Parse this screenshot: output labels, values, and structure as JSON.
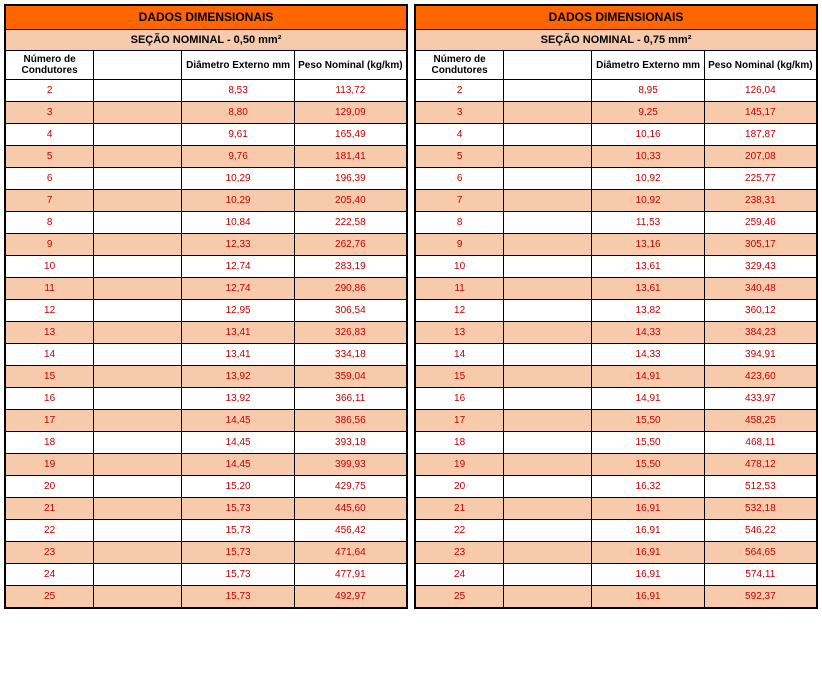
{
  "left": {
    "title": "DADOS DIMENSIONAIS",
    "subtitle": "SEÇÃO NOMINAL - 0,50 mm²",
    "columns": [
      "Número de Condutores",
      "",
      "Diâmetro Externo mm",
      "Peso Nominal (kg/km)"
    ],
    "rows": [
      [
        "2",
        "",
        "8,53",
        "113,72"
      ],
      [
        "3",
        "",
        "8,80",
        "129,09"
      ],
      [
        "4",
        "",
        "9,61",
        "165,49"
      ],
      [
        "5",
        "",
        "9,76",
        "181,41"
      ],
      [
        "6",
        "",
        "10,29",
        "196,39"
      ],
      [
        "7",
        "",
        "10,29",
        "205,40"
      ],
      [
        "8",
        "",
        "10,84",
        "222,58"
      ],
      [
        "9",
        "",
        "12,33",
        "262,76"
      ],
      [
        "10",
        "",
        "12,74",
        "283,19"
      ],
      [
        "11",
        "",
        "12,74",
        "290,86"
      ],
      [
        "12",
        "",
        "12,95",
        "306,54"
      ],
      [
        "13",
        "",
        "13,41",
        "326,83"
      ],
      [
        "14",
        "",
        "13,41",
        "334,18"
      ],
      [
        "15",
        "",
        "13,92",
        "359,04"
      ],
      [
        "16",
        "",
        "13,92",
        "366,11"
      ],
      [
        "17",
        "",
        "14,45",
        "386,56"
      ],
      [
        "18",
        "",
        "14,45",
        "393,18"
      ],
      [
        "19",
        "",
        "14,45",
        "399,93"
      ],
      [
        "20",
        "",
        "15,20",
        "429,75"
      ],
      [
        "21",
        "",
        "15,73",
        "445,60"
      ],
      [
        "22",
        "",
        "15,73",
        "456,42"
      ],
      [
        "23",
        "",
        "15,73",
        "471,64"
      ],
      [
        "24",
        "",
        "15,73",
        "477,91"
      ],
      [
        "25",
        "",
        "15,73",
        "492,97"
      ]
    ]
  },
  "right": {
    "title": "DADOS DIMENSIONAIS",
    "subtitle": "SEÇÃO NOMINAL - 0,75 mm²",
    "columns": [
      "Número de Condutores",
      "",
      "Diâmetro Externo mm",
      "Peso Nominal (kg/km)"
    ],
    "rows": [
      [
        "2",
        "",
        "8,95",
        "126,04"
      ],
      [
        "3",
        "",
        "9,25",
        "145,17"
      ],
      [
        "4",
        "",
        "10,16",
        "187,87"
      ],
      [
        "5",
        "",
        "10,33",
        "207,08"
      ],
      [
        "6",
        "",
        "10,92",
        "225,77"
      ],
      [
        "7",
        "",
        "10,92",
        "238,31"
      ],
      [
        "8",
        "",
        "11,53",
        "259,46"
      ],
      [
        "9",
        "",
        "13,16",
        "305,17"
      ],
      [
        "10",
        "",
        "13,61",
        "329,43"
      ],
      [
        "11",
        "",
        "13,61",
        "340,48"
      ],
      [
        "12",
        "",
        "13,82",
        "360,12"
      ],
      [
        "13",
        "",
        "14,33",
        "384,23"
      ],
      [
        "14",
        "",
        "14,33",
        "394,91"
      ],
      [
        "15",
        "",
        "14,91",
        "423,60"
      ],
      [
        "16",
        "",
        "14,91",
        "433,97"
      ],
      [
        "17",
        "",
        "15,50",
        "458,25"
      ],
      [
        "18",
        "",
        "15,50",
        "468,11"
      ],
      [
        "19",
        "",
        "15,50",
        "478,12"
      ],
      [
        "20",
        "",
        "16,32",
        "512,53"
      ],
      [
        "21",
        "",
        "16,91",
        "532,18"
      ],
      [
        "22",
        "",
        "16,91",
        "546,22"
      ],
      [
        "23",
        "",
        "16,91",
        "564,65"
      ],
      [
        "24",
        "",
        "16,91",
        "574,11"
      ],
      [
        "25",
        "",
        "16,91",
        "592,37"
      ]
    ]
  },
  "style": {
    "header_bg": "#ff6600",
    "sub_bg": "#f7caac",
    "alt_bg": "#f7caac",
    "text_color": "#c00000",
    "border_color": "#000000"
  }
}
